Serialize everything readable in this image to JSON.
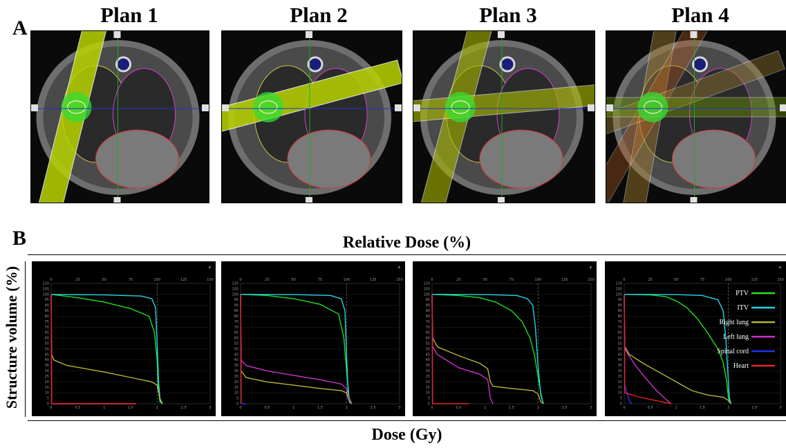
{
  "panel_labels": {
    "a": "A",
    "b": "B"
  },
  "plans": [
    "Plan 1",
    "Plan 2",
    "Plan 3",
    "Plan 4"
  ],
  "chart_data": {
    "type": "line",
    "xlabel": "Dose (Gy)",
    "x2label": "Relative Dose (%)",
    "ylabel": "Structure volume (%)",
    "xlim": [
      0,
      3
    ],
    "x2lim": [
      0,
      150
    ],
    "ylim": [
      0,
      110
    ],
    "x_ticks": [
      "0",
      "0.5",
      "1",
      "1.5",
      "2",
      "2.5",
      "3"
    ],
    "x2_ticks": [
      "0",
      "25",
      "50",
      "75",
      "100",
      "125",
      "150"
    ],
    "y_ticks": [
      "0",
      "5",
      "10",
      "15",
      "20",
      "25",
      "30",
      "35",
      "40",
      "45",
      "50",
      "55",
      "60",
      "65",
      "70",
      "75",
      "80",
      "85",
      "90",
      "95",
      "100",
      "105",
      "110"
    ],
    "legend": [
      {
        "name": "PTV",
        "color": "#22dd22"
      },
      {
        "name": "ITV",
        "color": "#22d8e8"
      },
      {
        "name": "Right lung",
        "color": "#b8b830"
      },
      {
        "name": "Left lung",
        "color": "#cc33cc"
      },
      {
        "name": "Spinal cord",
        "color": "#2233ee"
      },
      {
        "name": "Heart",
        "color": "#ee2222"
      }
    ],
    "panels": [
      {
        "plan": "Plan 1",
        "series": [
          {
            "name": "PTV",
            "points": [
              [
                0,
                100
              ],
              [
                0.5,
                97
              ],
              [
                1,
                93
              ],
              [
                1.5,
                87
              ],
              [
                1.85,
                80
              ],
              [
                1.95,
                65
              ],
              [
                2.0,
                40
              ],
              [
                2.02,
                15
              ],
              [
                2.05,
                2
              ],
              [
                2.1,
                0
              ]
            ]
          },
          {
            "name": "ITV",
            "points": [
              [
                0,
                100
              ],
              [
                1,
                99.5
              ],
              [
                1.7,
                98.5
              ],
              [
                1.9,
                96
              ],
              [
                1.97,
                88
              ],
              [
                2.0,
                55
              ],
              [
                2.03,
                18
              ],
              [
                2.06,
                2
              ],
              [
                2.1,
                0
              ]
            ]
          },
          {
            "name": "Right lung",
            "points": [
              [
                0,
                100
              ],
              [
                0.01,
                45
              ],
              [
                0.05,
                40
              ],
              [
                0.3,
                35
              ],
              [
                1,
                29
              ],
              [
                1.5,
                24
              ],
              [
                1.9,
                20
              ],
              [
                2.0,
                17
              ],
              [
                2.05,
                5
              ],
              [
                2.1,
                0
              ]
            ]
          },
          {
            "name": "Left lung",
            "points": [
              [
                0,
                100
              ],
              [
                0.01,
                0
              ],
              [
                1.6,
                0
              ]
            ]
          },
          {
            "name": "Spinal cord",
            "points": [
              [
                0,
                100
              ],
              [
                0.01,
                0
              ]
            ]
          },
          {
            "name": "Heart",
            "points": [
              [
                0,
                100
              ],
              [
                0.01,
                0
              ],
              [
                1.6,
                0
              ]
            ]
          }
        ]
      },
      {
        "plan": "Plan 2",
        "series": [
          {
            "name": "PTV",
            "points": [
              [
                0,
                100
              ],
              [
                0.5,
                99
              ],
              [
                1,
                96
              ],
              [
                1.5,
                91
              ],
              [
                1.85,
                82
              ],
              [
                1.95,
                60
              ],
              [
                2.0,
                30
              ],
              [
                2.05,
                5
              ],
              [
                2.1,
                0
              ]
            ]
          },
          {
            "name": "ITV",
            "points": [
              [
                0,
                100
              ],
              [
                1,
                99.8
              ],
              [
                1.7,
                99
              ],
              [
                1.9,
                96
              ],
              [
                1.97,
                85
              ],
              [
                2.0,
                45
              ],
              [
                2.03,
                10
              ],
              [
                2.06,
                1
              ],
              [
                2.1,
                0
              ]
            ]
          },
          {
            "name": "Right lung",
            "points": [
              [
                0,
                100
              ],
              [
                0.01,
                30
              ],
              [
                0.1,
                24
              ],
              [
                0.5,
                20
              ],
              [
                1,
                17
              ],
              [
                1.5,
                14
              ],
              [
                1.9,
                12
              ],
              [
                2.0,
                10
              ],
              [
                2.05,
                2
              ],
              [
                2.1,
                0
              ]
            ]
          },
          {
            "name": "Left lung",
            "points": [
              [
                0,
                100
              ],
              [
                0.01,
                40
              ],
              [
                0.1,
                35
              ],
              [
                0.5,
                30
              ],
              [
                1,
                26
              ],
              [
                1.5,
                22
              ],
              [
                1.9,
                18
              ],
              [
                2.0,
                14
              ],
              [
                2.05,
                3
              ],
              [
                2.1,
                0
              ]
            ]
          },
          {
            "name": "Spinal cord",
            "points": [
              [
                0,
                100
              ],
              [
                0.01,
                0
              ],
              [
                0.1,
                0
              ]
            ]
          },
          {
            "name": "Heart",
            "points": [
              [
                0,
                100
              ],
              [
                0.01,
                0
              ]
            ]
          }
        ]
      },
      {
        "plan": "Plan 3",
        "series": [
          {
            "name": "PTV",
            "points": [
              [
                0,
                100
              ],
              [
                0.5,
                99
              ],
              [
                0.9,
                97
              ],
              [
                1.2,
                93
              ],
              [
                1.5,
                85
              ],
              [
                1.7,
                75
              ],
              [
                1.85,
                60
              ],
              [
                1.93,
                45
              ],
              [
                2.0,
                25
              ],
              [
                2.05,
                10
              ],
              [
                2.1,
                0
              ]
            ]
          },
          {
            "name": "ITV",
            "points": [
              [
                0,
                100
              ],
              [
                1,
                99.8
              ],
              [
                1.6,
                99
              ],
              [
                1.8,
                96
              ],
              [
                1.9,
                90
              ],
              [
                1.95,
                70
              ],
              [
                2.0,
                35
              ],
              [
                2.05,
                8
              ],
              [
                2.1,
                0
              ]
            ]
          },
          {
            "name": "Right lung",
            "points": [
              [
                0,
                100
              ],
              [
                0.01,
                60
              ],
              [
                0.1,
                52
              ],
              [
                0.5,
                44
              ],
              [
                0.9,
                37
              ],
              [
                1.05,
                32
              ],
              [
                1.1,
                20
              ],
              [
                1.15,
                16
              ],
              [
                1.5,
                14
              ],
              [
                1.9,
                12
              ],
              [
                2.0,
                9
              ],
              [
                2.05,
                2
              ],
              [
                2.1,
                0
              ]
            ]
          },
          {
            "name": "Left lung",
            "points": [
              [
                0,
                100
              ],
              [
                0.01,
                52
              ],
              [
                0.1,
                45
              ],
              [
                0.5,
                33
              ],
              [
                0.9,
                27
              ],
              [
                1.05,
                22
              ],
              [
                1.1,
                5
              ],
              [
                1.15,
                0
              ]
            ]
          },
          {
            "name": "Spinal cord",
            "points": [
              [
                0,
                100
              ],
              [
                0.01,
                0
              ],
              [
                0.05,
                0
              ]
            ]
          },
          {
            "name": "Heart",
            "points": [
              [
                0,
                100
              ],
              [
                0.01,
                0
              ],
              [
                0.7,
                0
              ]
            ]
          }
        ]
      },
      {
        "plan": "Plan 4",
        "series": [
          {
            "name": "PTV",
            "points": [
              [
                0,
                100
              ],
              [
                0.5,
                99.5
              ],
              [
                0.8,
                98
              ],
              [
                1.0,
                94
              ],
              [
                1.2,
                88
              ],
              [
                1.4,
                78
              ],
              [
                1.6,
                65
              ],
              [
                1.8,
                50
              ],
              [
                1.9,
                38
              ],
              [
                1.97,
                20
              ],
              [
                2.0,
                5
              ],
              [
                2.05,
                0
              ]
            ]
          },
          {
            "name": "ITV",
            "points": [
              [
                0,
                100
              ],
              [
                1,
                99.8
              ],
              [
                1.5,
                99
              ],
              [
                1.8,
                95
              ],
              [
                1.9,
                85
              ],
              [
                1.95,
                60
              ],
              [
                2.0,
                20
              ],
              [
                2.02,
                5
              ],
              [
                2.05,
                0
              ]
            ]
          },
          {
            "name": "Right lung",
            "points": [
              [
                0,
                100
              ],
              [
                0.01,
                52
              ],
              [
                0.1,
                45
              ],
              [
                0.4,
                36
              ],
              [
                0.7,
                28
              ],
              [
                1.0,
                20
              ],
              [
                1.3,
                12
              ],
              [
                1.6,
                8
              ],
              [
                1.9,
                6
              ],
              [
                2.0,
                3
              ],
              [
                2.05,
                0
              ]
            ]
          },
          {
            "name": "Left lung",
            "points": [
              [
                0,
                100
              ],
              [
                0.01,
                50
              ],
              [
                0.2,
                36
              ],
              [
                0.4,
                24
              ],
              [
                0.6,
                13
              ],
              [
                0.8,
                4
              ],
              [
                0.9,
                0
              ]
            ]
          },
          {
            "name": "Spinal cord",
            "points": [
              [
                0,
                100
              ],
              [
                0.01,
                18
              ],
              [
                0.05,
                10
              ],
              [
                0.1,
                2
              ],
              [
                0.15,
                0
              ]
            ]
          },
          {
            "name": "Heart",
            "points": [
              [
                0,
                100
              ],
              [
                0.01,
                10
              ],
              [
                0.3,
                6
              ],
              [
                0.6,
                3
              ],
              [
                0.9,
                0
              ]
            ]
          }
        ]
      }
    ]
  }
}
